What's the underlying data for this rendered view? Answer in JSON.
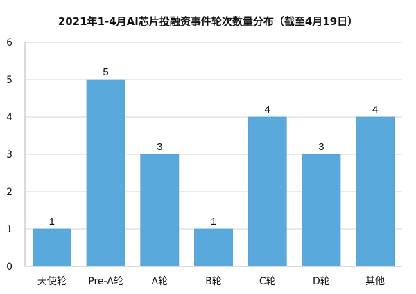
{
  "chart_data": {
    "type": "bar",
    "title": "2021年1-4月AI芯片投融资事件轮次数量分布（截至4月19日）",
    "xlabel": "",
    "ylabel": "",
    "categories": [
      "天使轮",
      "Pre-A轮",
      "A轮",
      "B轮",
      "C轮",
      "D轮",
      "其他"
    ],
    "values": [
      1,
      5,
      3,
      1,
      4,
      3,
      4
    ],
    "ylim": [
      0,
      6
    ],
    "yticks": [
      0,
      1,
      2,
      3,
      4,
      5,
      6
    ],
    "grid": true,
    "legend": "none",
    "show_data_labels": true,
    "bar_color": "#5aa9dd",
    "bar_border_color": "#4a97cc",
    "grid_color": "#d6d6d6",
    "axis_color": "#b5b5b5"
  }
}
